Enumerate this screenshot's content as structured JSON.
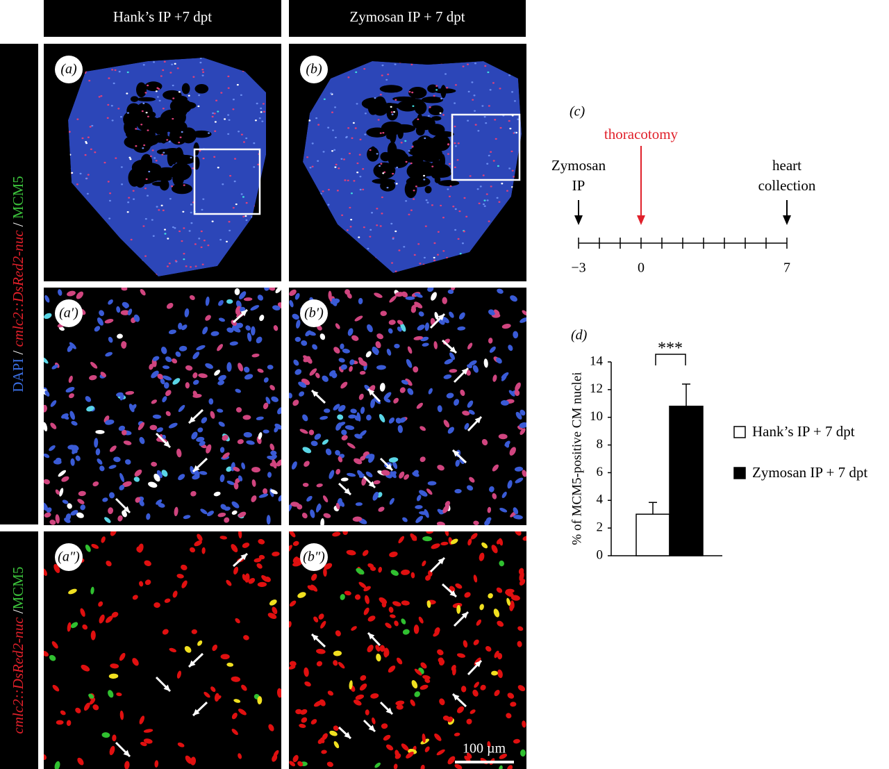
{
  "columns": [
    "Hank’s IP +7 dpt",
    "Zymosan IP + 7 dpt"
  ],
  "row_labels": [
    [
      "DAPI",
      " / ",
      "cmlc2::DsRed2-nuc",
      " / ",
      "MCM5"
    ],
    [
      "cmlc2::DsRed2-nuc",
      " /",
      "MCM5"
    ]
  ],
  "panels": [
    "(a)",
    "(b)",
    "(a′)",
    "(b′)",
    "(a″)",
    "(b″)"
  ],
  "scale_bar": "100 µm",
  "timeline": {
    "label": "(c)",
    "xlim": [
      -3,
      7
    ],
    "ticks": [
      -3,
      -2,
      -1,
      0,
      1,
      2,
      3,
      4,
      5,
      6,
      7
    ],
    "tick_labels": [
      {
        "value": -3,
        "label": "−3"
      },
      0,
      7
    ],
    "events": [
      {
        "label": [
          "Zymosan",
          "IP"
        ],
        "at": -3,
        "color": "#000000"
      },
      {
        "label": [
          "thoracotomy"
        ],
        "at": 0,
        "color": "#e0202a"
      },
      {
        "label": [
          "heart",
          "collection"
        ],
        "at": 7,
        "color": "#000000"
      }
    ]
  },
  "chart_data": {
    "type": "bar",
    "label": "(d)",
    "ylabel": "% of MCM5-positive CM nuclei",
    "ylim": [
      0,
      14
    ],
    "yticks": [
      0,
      2,
      4,
      6,
      8,
      10,
      12,
      14
    ],
    "annotation": "***",
    "series": [
      {
        "name": "Hank’s IP + 7 dpt",
        "color": "#ffffff",
        "values": [
          3.0
        ],
        "errors": [
          0.85
        ]
      },
      {
        "name": "Zymosan IP + 7 dpt",
        "color": "#000000",
        "values": [
          10.8
        ],
        "errors": [
          1.6
        ]
      }
    ]
  }
}
